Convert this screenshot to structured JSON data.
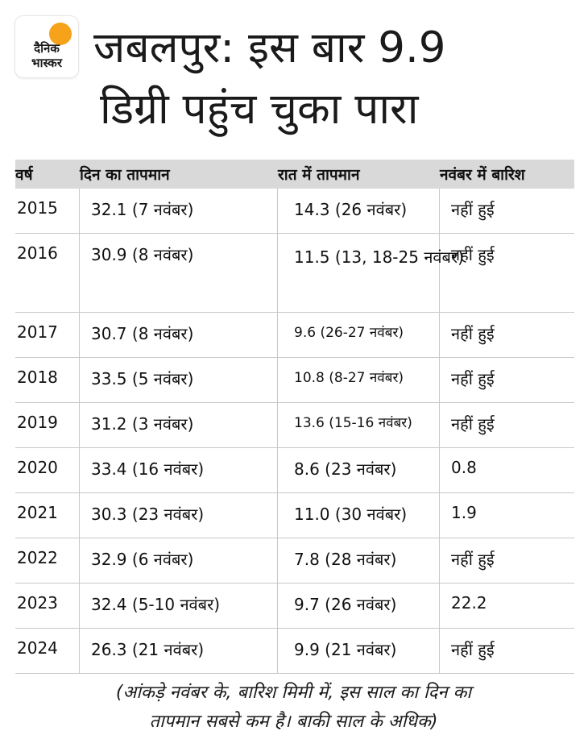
{
  "logo": {
    "line1": "दैनिक",
    "line2": "भास्कर"
  },
  "headline": {
    "line1": "जबलपुर: इस बार 9.9",
    "line2": "डिग्री पहुंच चुका पारा"
  },
  "table": {
    "headers": [
      "वर्ष",
      "दिन का तापमान",
      "रात में तापमान",
      "नवंबर में बारिश"
    ],
    "rows": [
      {
        "year": "2015",
        "day": "32.1 (7 नवंबर)",
        "night": "14.3 (26 नवंबर)",
        "rain": "नहीं हुई"
      },
      {
        "year": "2016",
        "day": "30.9 (8 नवंबर)",
        "night": "11.5 (13, 18-25 नवंबर)",
        "rain": "नहीं हुई"
      },
      {
        "year": "2017",
        "day": "30.7 (8 नवंबर)",
        "night": "9.6 (26-27 नवंबर)",
        "rain": "नहीं हुई"
      },
      {
        "year": "2018",
        "day": "33.5 (5 नवंबर)",
        "night": "10.8 (8-27 नवंबर)",
        "rain": "नहीं हुई"
      },
      {
        "year": "2019",
        "day": "31.2 (3 नवंबर)",
        "night": "13.6 (15-16 नवंबर)",
        "rain": "नहीं हुई"
      },
      {
        "year": "2020",
        "day": "33.4 (16 नवंबर)",
        "night": "8.6 (23 नवंबर)",
        "rain": "0.8"
      },
      {
        "year": "2021",
        "day": "30.3 (23 नवंबर)",
        "night": "11.0 (30 नवंबर)",
        "rain": "1.9"
      },
      {
        "year": "2022",
        "day": "32.9 (6 नवंबर)",
        "night": "7.8 (28 नवंबर)",
        "rain": "नहीं हुई"
      },
      {
        "year": "2023",
        "day": "32.4 (5-10 नवंबर)",
        "night": "9.7 (26 नवंबर)",
        "rain": "22.2"
      },
      {
        "year": "2024",
        "day": "26.3  (21 नवंबर)",
        "night": "9.9 (21 नवंबर)",
        "rain": "नहीं हुई"
      }
    ]
  },
  "footnote": {
    "line1": "(आंकड़े नवंबर के, बारिश मिमी में, इस साल का दिन का",
    "line2": "तापमान सबसे कम है। बाकी साल के अधिक)"
  },
  "colors": {
    "logo_sun": "#f6a21a",
    "header_bg": "#d9d9d9",
    "rule": "#c8c8c8"
  }
}
